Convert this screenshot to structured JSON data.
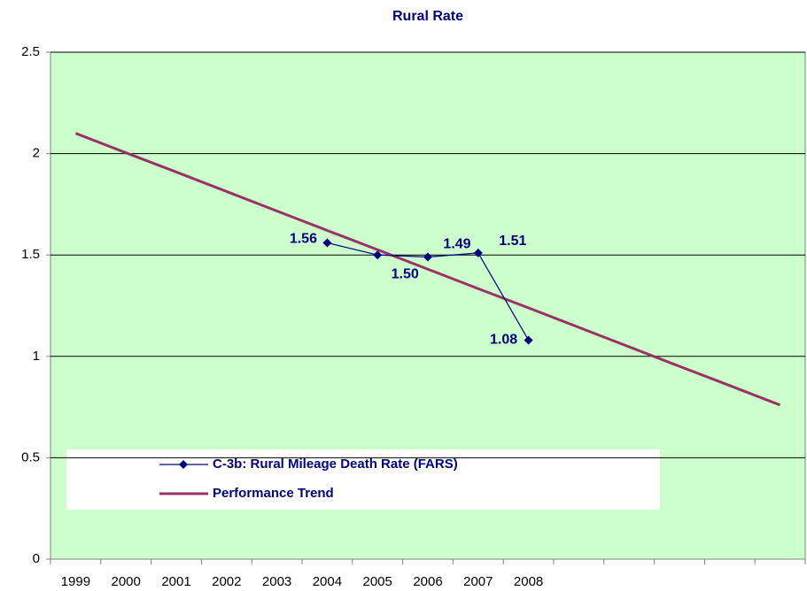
{
  "chart_data": {
    "type": "line",
    "title": "Rural Rate",
    "categories": [
      "1999",
      "2000",
      "2001",
      "2002",
      "2003",
      "2004",
      "2005",
      "2006",
      "2007",
      "2008",
      null,
      null,
      null,
      null,
      null
    ],
    "series": [
      {
        "name": "C-3b: Rural Mileage Death Rate (FARS)",
        "color": "#000080",
        "values": [
          null,
          null,
          null,
          null,
          null,
          1.56,
          1.5,
          1.49,
          1.51,
          1.08,
          null,
          null,
          null,
          null,
          null
        ],
        "value_labels": [
          null,
          null,
          null,
          null,
          null,
          "1.56",
          "1.50",
          "1.49",
          "1.51",
          "1.08",
          null,
          null,
          null,
          null,
          null
        ],
        "marker": "diamond"
      },
      {
        "name": "Performance Trend",
        "color": "#993366",
        "values": [
          2.1,
          2.004,
          1.909,
          1.813,
          1.717,
          1.621,
          1.526,
          1.43,
          1.334,
          1.239,
          1.143,
          1.047,
          0.951,
          0.856,
          0.76
        ]
      }
    ],
    "ylim": [
      0,
      2.5
    ],
    "yticks": [
      0,
      0.5,
      1,
      1.5,
      2,
      2.5
    ],
    "grid": true,
    "plot_background": "#ccffcc"
  }
}
